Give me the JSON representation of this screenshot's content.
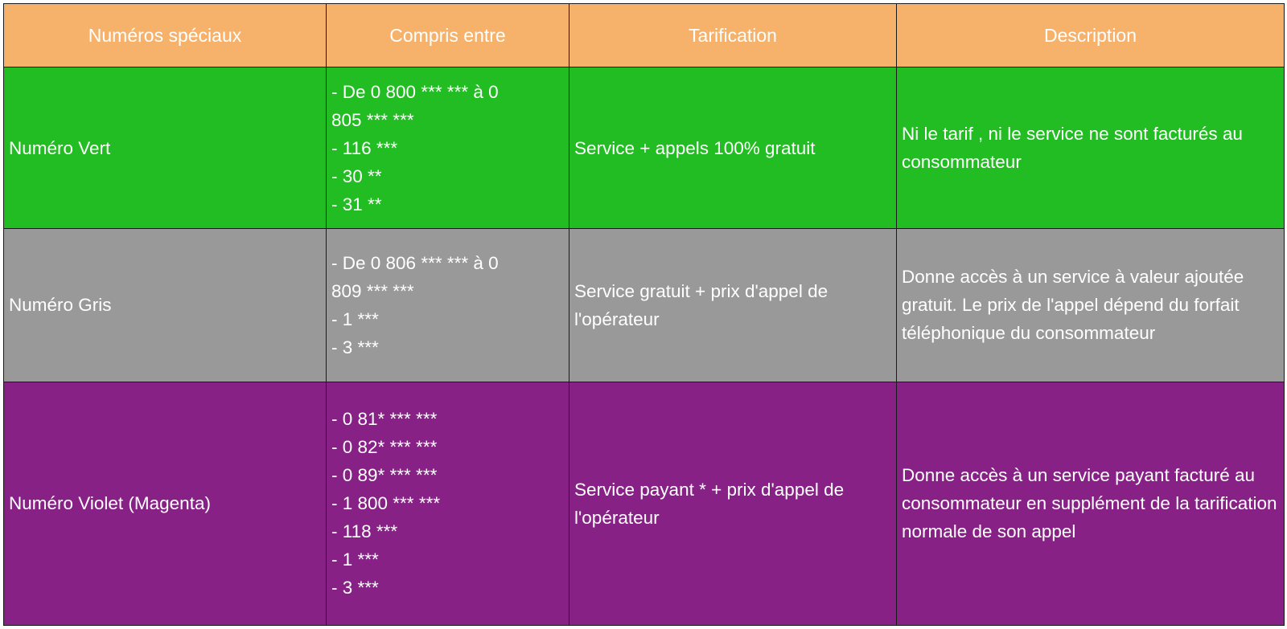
{
  "table": {
    "headers": [
      "Numéros spéciaux",
      "Compris entre",
      "Tarification",
      "Description"
    ],
    "header_color": "#f6b26b",
    "rows": [
      {
        "color": "#22bd22",
        "name": "Numéro Vert",
        "ranges": [
          "- De 0 800 *** *** à 0",
          "805 *** ***",
          "- 116 ***",
          "- 30 **",
          "- 31 **"
        ],
        "tarification": "Service + appels 100% gratuit",
        "description": "Ni le tarif , ni le service ne sont facturés au consommateur"
      },
      {
        "color": "#999999",
        "name": "Numéro Gris",
        "ranges": [
          "- De 0 806 *** *** à 0",
          "809 *** ***",
          "- 1 ***",
          "- 3 ***"
        ],
        "tarification": "Service gratuit + prix d'appel de l'opérateur",
        "description": "Donne accès à un service à valeur ajoutée gratuit. Le prix de l'appel dépend du forfait téléphonique du consommateur"
      },
      {
        "color": "#872186",
        "name": "Numéro Violet (Magenta)",
        "ranges": [
          "- 0 81* *** ***",
          "- 0 82* *** ***",
          "- 0 89* *** ***",
          "- 1 800 *** ***",
          "- 118 ***",
          "- 1 ***",
          "- 3 ***"
        ],
        "tarification": "Service payant * + prix d'appel de l'opérateur",
        "description": "Donne accès à un service payant facturé au consommateur en supplément de la tarification normale de son appel"
      }
    ]
  }
}
